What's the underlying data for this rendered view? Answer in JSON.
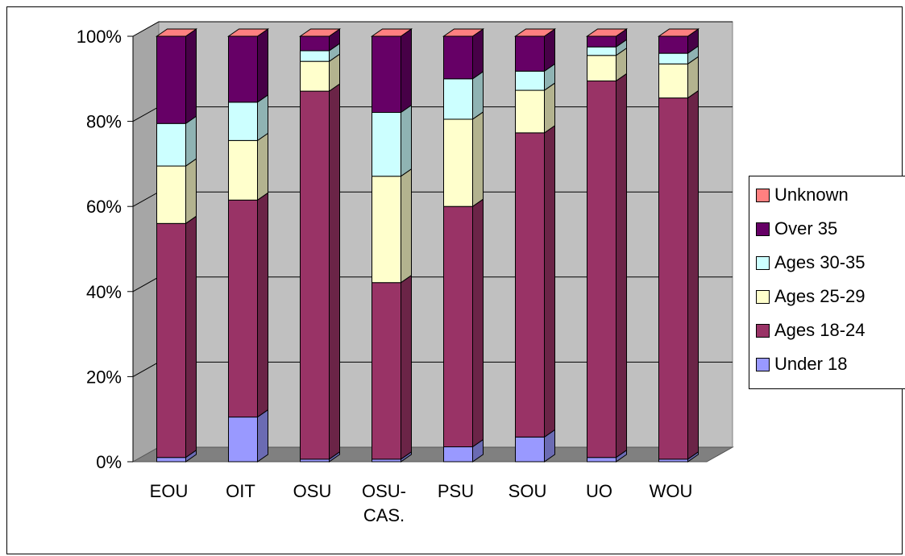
{
  "chart_data": {
    "type": "bar",
    "stacked": true,
    "percent_stacked": true,
    "three_d": true,
    "categories": [
      [
        "EOU"
      ],
      [
        "OIT"
      ],
      [
        "OSU"
      ],
      [
        "OSU-",
        "CAS."
      ],
      [
        "PSU"
      ],
      [
        "SOU"
      ],
      [
        "UO"
      ],
      [
        "WOU"
      ]
    ],
    "y_tick_labels": [
      "0%",
      "20%",
      "40%",
      "60%",
      "80%",
      "100%"
    ],
    "ylim": [
      0,
      100
    ],
    "grid": true,
    "legend_position": "right",
    "series": [
      {
        "name": "Under 18",
        "color": "#9999FF",
        "values": [
          1,
          10.5,
          0.6,
          0.6,
          3.5,
          5.8,
          1,
          0.6
        ]
      },
      {
        "name": "Ages 18-24",
        "color": "#993366",
        "values": [
          55,
          51,
          86.5,
          41.5,
          56.5,
          71.5,
          88.5,
          84.9
        ]
      },
      {
        "name": "Ages 25-29",
        "color": "#FFFFCC",
        "values": [
          13.5,
          14,
          7,
          25,
          20.5,
          10,
          6,
          8
        ]
      },
      {
        "name": "Ages 30-35",
        "color": "#CCFFFF",
        "values": [
          10,
          9,
          2.5,
          15,
          9.5,
          4.5,
          2,
          2.5
        ]
      },
      {
        "name": "Over 35",
        "color": "#660066",
        "values": [
          20.5,
          15.5,
          3.4,
          17.9,
          10,
          8.2,
          2.5,
          4
        ]
      },
      {
        "name": "Unknown",
        "color": "#FF8080",
        "values": [
          0,
          0,
          0,
          0,
          0,
          0,
          0,
          0
        ]
      }
    ],
    "legend_order": [
      "Unknown",
      "Over 35",
      "Ages 30-35",
      "Ages 25-29",
      "Ages 18-24",
      "Under 18"
    ]
  }
}
